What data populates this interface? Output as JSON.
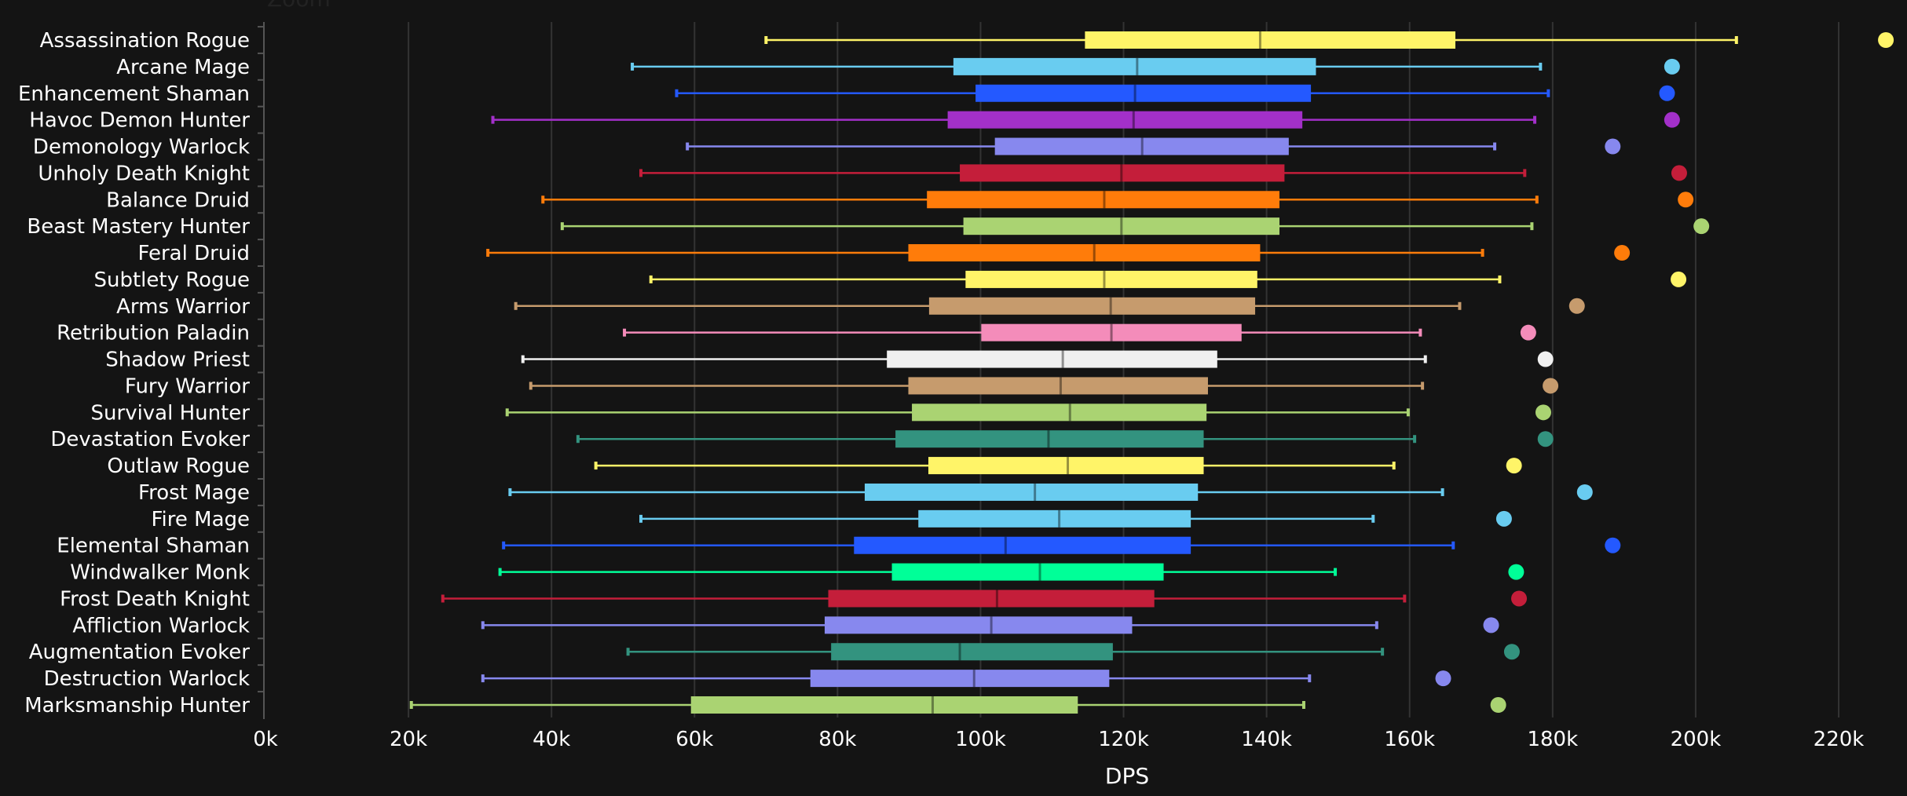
{
  "header": {
    "zoom_label": "Zoom"
  },
  "chart_data": {
    "type": "boxplot",
    "title": "",
    "xlabel": "DPS",
    "ylabel": "",
    "xlim": [
      0,
      220000
    ],
    "xticks": [
      "0k",
      "20k",
      "40k",
      "60k",
      "80k",
      "100k",
      "120k",
      "140k",
      "160k",
      "180k",
      "200k",
      "220k"
    ],
    "xtick_values": [
      0,
      20000,
      40000,
      60000,
      80000,
      100000,
      120000,
      140000,
      160000,
      180000,
      200000,
      220000
    ],
    "grid": "vertical",
    "legend": "none",
    "series": [
      {
        "category": "Assassination Rogue",
        "color": "#FFF468",
        "min": 70000,
        "q1": 114600,
        "median": 139100,
        "q3": 166400,
        "max": 205700,
        "outlier": 226600
      },
      {
        "category": "Arcane Mage",
        "color": "#69CCF0",
        "min": 51300,
        "q1": 96200,
        "median": 121900,
        "q3": 146900,
        "max": 178300,
        "outlier": 196700
      },
      {
        "category": "Enhancement Shaman",
        "color": "#2459FF",
        "min": 57500,
        "q1": 99300,
        "median": 121600,
        "q3": 146200,
        "max": 179400,
        "outlier": 196000
      },
      {
        "category": "Havoc Demon Hunter",
        "color": "#A330C9",
        "min": 31800,
        "q1": 95400,
        "median": 121400,
        "q3": 145000,
        "max": 177500,
        "outlier": 196700
      },
      {
        "category": "Demonology Warlock",
        "color": "#8788EE",
        "min": 59000,
        "q1": 102000,
        "median": 122600,
        "q3": 143100,
        "max": 171900,
        "outlier": 188400
      },
      {
        "category": "Unholy Death Knight",
        "color": "#C41E3A",
        "min": 52500,
        "q1": 97100,
        "median": 119700,
        "q3": 142500,
        "max": 176100,
        "outlier": 197700
      },
      {
        "category": "Balance Druid",
        "color": "#FF7C0A",
        "min": 38800,
        "q1": 92500,
        "median": 117300,
        "q3": 141800,
        "max": 177800,
        "outlier": 198600
      },
      {
        "category": "Beast Mastery Hunter",
        "color": "#AAD372",
        "min": 41500,
        "q1": 97600,
        "median": 119700,
        "q3": 141800,
        "max": 177100,
        "outlier": 200800
      },
      {
        "category": "Feral Druid",
        "color": "#FF7C0A",
        "min": 31100,
        "q1": 89900,
        "median": 115900,
        "q3": 139100,
        "max": 170200,
        "outlier": 189700
      },
      {
        "category": "Subtlety Rogue",
        "color": "#FFF468",
        "min": 53900,
        "q1": 97900,
        "median": 117300,
        "q3": 138700,
        "max": 172600,
        "outlier": 197600
      },
      {
        "category": "Arms Warrior",
        "color": "#C69B6D",
        "min": 35000,
        "q1": 92800,
        "median": 118200,
        "q3": 138400,
        "max": 167000,
        "outlier": 183400
      },
      {
        "category": "Retribution Paladin",
        "color": "#F48CBA",
        "min": 50200,
        "q1": 100100,
        "median": 118300,
        "q3": 136500,
        "max": 161500,
        "outlier": 176600
      },
      {
        "category": "Shadow Priest",
        "color": "#F0F0F0",
        "min": 36000,
        "q1": 86900,
        "median": 111500,
        "q3": 133100,
        "max": 162200,
        "outlier": 179000
      },
      {
        "category": "Fury Warrior",
        "color": "#C69B6D",
        "min": 37100,
        "q1": 89900,
        "median": 111200,
        "q3": 131800,
        "max": 161800,
        "outlier": 179700
      },
      {
        "category": "Survival Hunter",
        "color": "#AAD372",
        "min": 33800,
        "q1": 90400,
        "median": 112500,
        "q3": 131600,
        "max": 159800,
        "outlier": 178700
      },
      {
        "category": "Devastation Evoker",
        "color": "#33937F",
        "min": 43700,
        "q1": 88100,
        "median": 109500,
        "q3": 131200,
        "max": 160700,
        "outlier": 179000
      },
      {
        "category": "Outlaw Rogue",
        "color": "#FFF468",
        "min": 46200,
        "q1": 92700,
        "median": 112200,
        "q3": 131200,
        "max": 157800,
        "outlier": 174600
      },
      {
        "category": "Frost Mage",
        "color": "#69CCF0",
        "min": 34200,
        "q1": 83800,
        "median": 107600,
        "q3": 130400,
        "max": 164600,
        "outlier": 184500
      },
      {
        "category": "Fire Mage",
        "color": "#69CCF0",
        "min": 52500,
        "q1": 91300,
        "median": 111000,
        "q3": 129400,
        "max": 154900,
        "outlier": 173200
      },
      {
        "category": "Elemental Shaman",
        "color": "#2459FF",
        "min": 33300,
        "q1": 82300,
        "median": 103500,
        "q3": 129400,
        "max": 166100,
        "outlier": 188400
      },
      {
        "category": "Windwalker Monk",
        "color": "#00FF98",
        "min": 32800,
        "q1": 87600,
        "median": 108300,
        "q3": 125600,
        "max": 149600,
        "outlier": 174900
      },
      {
        "category": "Frost Death Knight",
        "color": "#C41E3A",
        "min": 24800,
        "q1": 78700,
        "median": 102300,
        "q3": 124300,
        "max": 159300,
        "outlier": 175300
      },
      {
        "category": "Affliction Warlock",
        "color": "#8788EE",
        "min": 30400,
        "q1": 78200,
        "median": 101500,
        "q3": 121200,
        "max": 155400,
        "outlier": 171400
      },
      {
        "category": "Augmentation Evoker",
        "color": "#33937F",
        "min": 50700,
        "q1": 79100,
        "median": 97100,
        "q3": 118500,
        "max": 156200,
        "outlier": 174300
      },
      {
        "category": "Destruction Warlock",
        "color": "#8788EE",
        "min": 30400,
        "q1": 76200,
        "median": 99100,
        "q3": 118000,
        "max": 146000,
        "outlier": 164700
      },
      {
        "category": "Marksmanship Hunter",
        "color": "#AAD372",
        "min": 20400,
        "q1": 59500,
        "median": 93300,
        "q3": 113600,
        "max": 145200,
        "outlier": 172400
      }
    ]
  }
}
